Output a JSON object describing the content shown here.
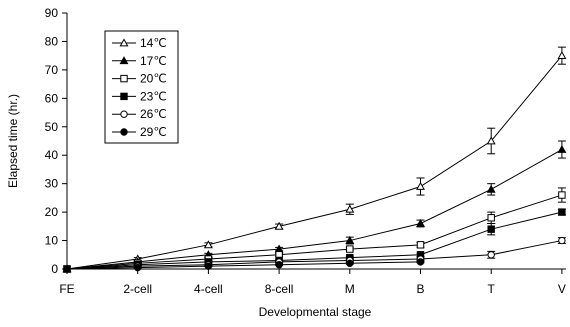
{
  "chart_data": {
    "type": "line",
    "title": "",
    "xlabel": "Developmental stage",
    "ylabel": "Elapsed time (hr.)",
    "ylim": [
      0,
      90
    ],
    "yticks": [
      "0",
      "10",
      "20",
      "30",
      "40",
      "50",
      "60",
      "70",
      "80",
      "90"
    ],
    "categories": [
      "FE",
      "2-cell",
      "4-cell",
      "8-cell",
      "M",
      "B",
      "T",
      "V"
    ],
    "grid": false,
    "legend_position": "top-left",
    "series": [
      {
        "name": "14℃",
        "marker": "triangle-open",
        "values": [
          0,
          3.5,
          8.5,
          15,
          21,
          29,
          45,
          75
        ],
        "errors": [
          0,
          0.5,
          0.7,
          0.8,
          1.8,
          3,
          4.5,
          3
        ]
      },
      {
        "name": "17℃",
        "marker": "triangle-filled",
        "values": [
          0,
          2.5,
          5,
          7,
          10,
          16,
          28,
          42
        ],
        "errors": [
          0,
          0.4,
          0.5,
          0.6,
          1.2,
          1.2,
          2,
          3
        ]
      },
      {
        "name": "20℃",
        "marker": "square-open",
        "values": [
          0,
          2,
          3.5,
          5,
          7,
          8.5,
          18,
          26
        ],
        "errors": [
          0,
          0.3,
          0.4,
          0.5,
          0.6,
          0.8,
          2,
          2.5
        ]
      },
      {
        "name": "23℃",
        "marker": "square-filled",
        "values": [
          0,
          1.5,
          2.5,
          3,
          4,
          5,
          14,
          20
        ],
        "errors": [
          0,
          0.3,
          0.3,
          0.4,
          0.5,
          0.6,
          2,
          1
        ]
      },
      {
        "name": "26℃",
        "marker": "circle-open",
        "values": [
          0,
          1,
          1.5,
          2.5,
          3,
          3.5,
          5,
          10
        ],
        "errors": [
          0,
          0.2,
          0.3,
          0.3,
          0.4,
          0.4,
          1.2,
          1
        ]
      },
      {
        "name": "29℃",
        "marker": "circle-filled",
        "values": [
          0,
          0.5,
          1,
          1.5,
          2,
          2.5,
          null,
          null
        ],
        "errors": [
          0,
          0.2,
          0.2,
          0.2,
          0.3,
          0.3,
          null,
          null
        ]
      }
    ]
  }
}
